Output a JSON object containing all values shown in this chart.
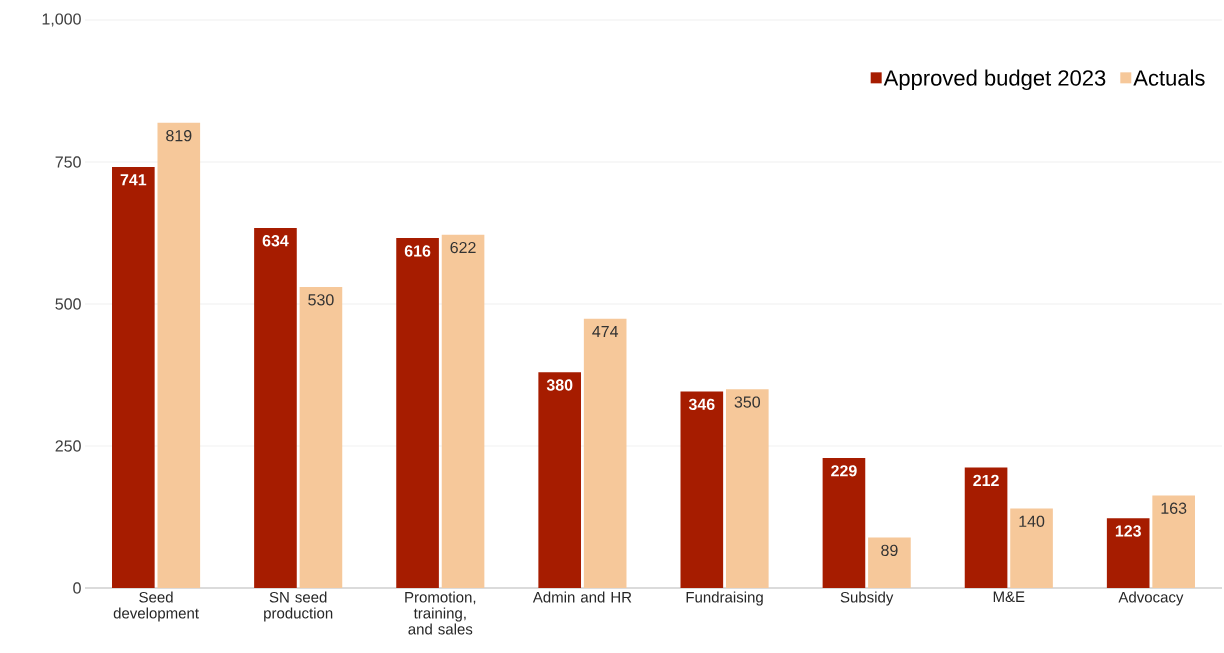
{
  "chart_data": {
    "type": "bar",
    "categories": [
      "Seed development",
      "SN seed production",
      "Promotion, training, and sales",
      "Admin and HR",
      "Fundraising",
      "Subsidy",
      "M&E",
      "Advocacy"
    ],
    "series": [
      {
        "name": "Approved budget 2023",
        "color": "#a61c00",
        "values": [
          741,
          634,
          616,
          380,
          346,
          229,
          212,
          123
        ]
      },
      {
        "name": "Actuals",
        "color": "#f6c89a",
        "values": [
          819,
          530,
          622,
          474,
          350,
          89,
          140,
          163
        ]
      }
    ],
    "ylim": [
      0,
      1000
    ],
    "yticks": [
      0,
      250,
      500,
      750,
      {
        "value": 1000,
        "label": "1,000"
      }
    ],
    "grid": "y",
    "legend": "top right",
    "data_labels": true
  }
}
